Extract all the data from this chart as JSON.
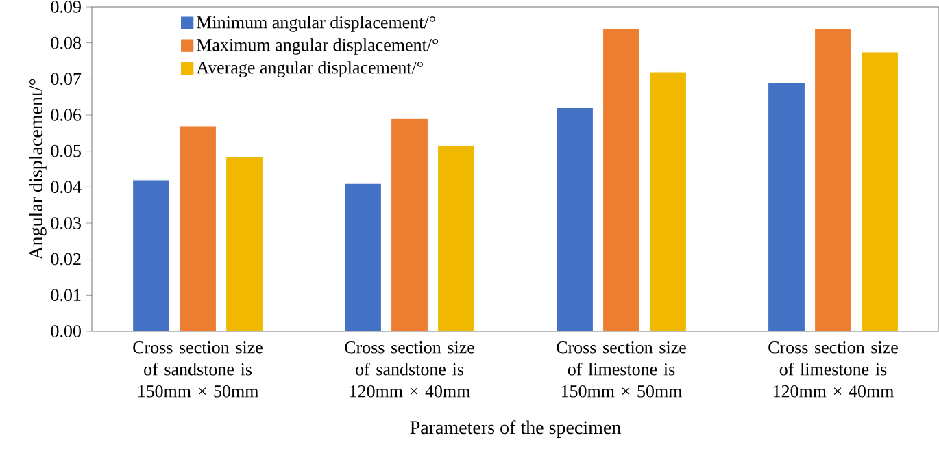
{
  "chart_data": {
    "type": "bar",
    "xlabel": "Parameters of the specimen",
    "ylabel": "Angular displacement/°",
    "categories": [
      "Cross section size of sandstone is 150mm × 50mm",
      "Cross section size of sandstone is 120mm × 40mm",
      "Cross section size of limestone is 150mm × 50mm",
      "Cross section size of limestone is 120mm × 40mm"
    ],
    "series": [
      {
        "name": "Minimum angular displacement/°",
        "color": "#4472c4",
        "values": [
          0.042,
          0.041,
          0.062,
          0.069
        ]
      },
      {
        "name": "Maximum angular displacement/°",
        "color": "#ed7d31",
        "values": [
          0.057,
          0.059,
          0.084,
          0.084
        ]
      },
      {
        "name": "Average angular displacement/°",
        "color": "#f0b800",
        "values": [
          0.0485,
          0.0515,
          0.072,
          0.0775
        ]
      }
    ],
    "ylim": [
      0,
      0.09
    ],
    "yticks": [
      {
        "value": 0,
        "label": "0.00"
      },
      0.01,
      0.02,
      0.03,
      0.04,
      0.05,
      0.06,
      0.07,
      0.08,
      0.09
    ],
    "legend": "top left",
    "grid": false
  }
}
